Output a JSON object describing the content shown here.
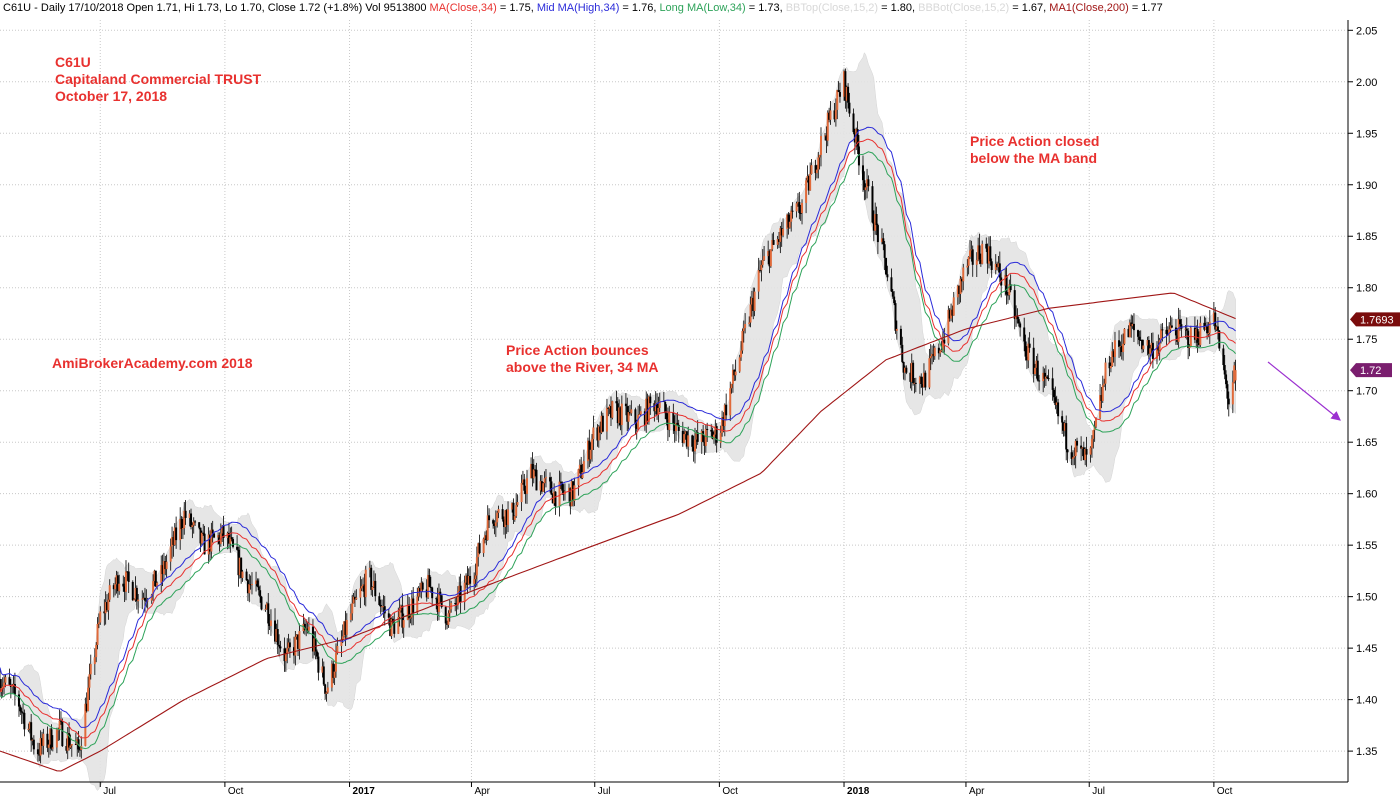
{
  "header": {
    "segments": [
      {
        "text": "C61U - Daily 17/10/2018 Open 1.71, Hi 1.73, Lo 1.70, Close 1.72 (+1.8%) Vol 9513800 ",
        "color": "#000000"
      },
      {
        "text": "MA(Close,34)",
        "color": "#e8312f"
      },
      {
        "text": " = 1.75, ",
        "color": "#000000"
      },
      {
        "text": "Mid MA(High,34)",
        "color": "#2b2bd9"
      },
      {
        "text": " = 1.76, ",
        "color": "#000000"
      },
      {
        "text": "Long MA(Low,34)",
        "color": "#2ea35a"
      },
      {
        "text": " = 1.73, ",
        "color": "#000000"
      },
      {
        "text": "BBTop(Close,15,2)",
        "color": "#d8d8d8"
      },
      {
        "text": " = 1.80, ",
        "color": "#000000"
      },
      {
        "text": "BBBot(Close,15,2)",
        "color": "#d8d8d8"
      },
      {
        "text": " = 1.67, ",
        "color": "#000000"
      },
      {
        "text": "MA1(Close,200)",
        "color": "#a01616"
      },
      {
        "text": " = 1.77",
        "color": "#000000"
      }
    ]
  },
  "annotations": {
    "symbol": "C61U",
    "company": "Capitaland Commercial TRUST",
    "date": "October 17, 2018",
    "site": "AmiBrokerAcademy.com  2018",
    "note_bounce_1": "Price Action bounces",
    "note_bounce_2": "above the River, 34 MA",
    "note_closed_1": "Price Action closed",
    "note_closed_2": "below the MA band"
  },
  "price_tags": {
    "ma200": {
      "label": "1.7693",
      "value": 1.7693,
      "color": "#7a0c0c"
    },
    "last": {
      "label": "1.72",
      "value": 1.72,
      "color": "#7a1e6e"
    }
  },
  "colors": {
    "text_red": "#e8312f",
    "up_candle": "#e06a3a",
    "down_candle": "#000000",
    "ma34_close": "#e8312f",
    "ma34_high": "#2b2bd9",
    "ma34_low": "#2ea35a",
    "ma200": "#a01616",
    "bb_fill": "#e4e4e4",
    "grid": "#c8c8c8",
    "arrow": "#9b30d0"
  },
  "chart_data": {
    "type": "candlestick",
    "title": "C61U - Daily 17/10/2018",
    "ylim": [
      1.32,
      2.06
    ],
    "yticks": [
      "1.35",
      "1.40",
      "1.45",
      "1.50",
      "1.55",
      "1.60",
      "1.65",
      "1.70",
      "1.75",
      "1.80",
      "1.85",
      "1.90",
      "1.95",
      "2.00",
      "2.05"
    ],
    "xlim": [
      "2016-04-18",
      "2019-01-08"
    ],
    "xticks": [
      {
        "date": "2016-07-01",
        "label": "Jul",
        "bold": false
      },
      {
        "date": "2016-10-01",
        "label": "Oct",
        "bold": false
      },
      {
        "date": "2017-01-01",
        "label": "2017",
        "bold": true
      },
      {
        "date": "2017-04-01",
        "label": "Apr",
        "bold": false
      },
      {
        "date": "2017-07-01",
        "label": "Jul",
        "bold": false
      },
      {
        "date": "2017-10-01",
        "label": "Oct",
        "bold": false
      },
      {
        "date": "2018-01-01",
        "label": "2018",
        "bold": true
      },
      {
        "date": "2018-04-01",
        "label": "Apr",
        "bold": false
      },
      {
        "date": "2018-07-01",
        "label": "Jul",
        "bold": false
      },
      {
        "date": "2018-10-01",
        "label": "Oct",
        "bold": false
      }
    ],
    "price_path": [
      [
        "2016-04-18",
        1.42
      ],
      [
        "2016-05-01",
        1.4
      ],
      [
        "2016-05-15",
        1.35
      ],
      [
        "2016-06-01",
        1.37
      ],
      [
        "2016-06-15",
        1.35
      ],
      [
        "2016-07-01",
        1.48
      ],
      [
        "2016-07-15",
        1.52
      ],
      [
        "2016-08-01",
        1.5
      ],
      [
        "2016-08-15",
        1.52
      ],
      [
        "2016-09-01",
        1.58
      ],
      [
        "2016-09-15",
        1.55
      ],
      [
        "2016-10-01",
        1.56
      ],
      [
        "2016-10-15",
        1.52
      ],
      [
        "2016-11-01",
        1.49
      ],
      [
        "2016-11-15",
        1.44
      ],
      [
        "2016-12-01",
        1.47
      ],
      [
        "2016-12-15",
        1.41
      ],
      [
        "2017-01-01",
        1.48
      ],
      [
        "2017-01-15",
        1.52
      ],
      [
        "2017-02-01",
        1.47
      ],
      [
        "2017-02-15",
        1.49
      ],
      [
        "2017-03-01",
        1.51
      ],
      [
        "2017-03-15",
        1.48
      ],
      [
        "2017-04-01",
        1.52
      ],
      [
        "2017-04-15",
        1.58
      ],
      [
        "2017-05-01",
        1.58
      ],
      [
        "2017-05-15",
        1.62
      ],
      [
        "2017-06-01",
        1.6
      ],
      [
        "2017-06-15",
        1.6
      ],
      [
        "2017-07-01",
        1.66
      ],
      [
        "2017-07-15",
        1.68
      ],
      [
        "2017-08-01",
        1.67
      ],
      [
        "2017-08-15",
        1.69
      ],
      [
        "2017-09-01",
        1.66
      ],
      [
        "2017-09-15",
        1.65
      ],
      [
        "2017-10-01",
        1.66
      ],
      [
        "2017-10-15",
        1.73
      ],
      [
        "2017-11-01",
        1.82
      ],
      [
        "2017-11-15",
        1.85
      ],
      [
        "2017-12-01",
        1.88
      ],
      [
        "2017-12-15",
        1.94
      ],
      [
        "2018-01-01",
        2.0
      ],
      [
        "2018-01-15",
        1.91
      ],
      [
        "2018-02-01",
        1.82
      ],
      [
        "2018-02-15",
        1.72
      ],
      [
        "2018-03-01",
        1.71
      ],
      [
        "2018-03-15",
        1.75
      ],
      [
        "2018-04-01",
        1.82
      ],
      [
        "2018-04-15",
        1.84
      ],
      [
        "2018-05-01",
        1.8
      ],
      [
        "2018-05-15",
        1.74
      ],
      [
        "2018-06-01",
        1.7
      ],
      [
        "2018-06-15",
        1.65
      ],
      [
        "2018-07-01",
        1.63
      ],
      [
        "2018-07-15",
        1.73
      ],
      [
        "2018-08-01",
        1.76
      ],
      [
        "2018-08-15",
        1.74
      ],
      [
        "2018-09-01",
        1.76
      ],
      [
        "2018-09-15",
        1.75
      ],
      [
        "2018-10-01",
        1.77
      ],
      [
        "2018-10-08",
        1.72
      ],
      [
        "2018-10-12",
        1.69
      ],
      [
        "2018-10-17",
        1.72
      ]
    ],
    "ma200_path": [
      [
        "2016-04-18",
        1.35
      ],
      [
        "2016-06-01",
        1.33
      ],
      [
        "2016-07-01",
        1.35
      ],
      [
        "2016-09-01",
        1.4
      ],
      [
        "2016-11-01",
        1.44
      ],
      [
        "2017-01-01",
        1.46
      ],
      [
        "2017-03-01",
        1.49
      ],
      [
        "2017-05-01",
        1.52
      ],
      [
        "2017-07-01",
        1.55
      ],
      [
        "2017-09-01",
        1.58
      ],
      [
        "2017-11-01",
        1.62
      ],
      [
        "2017-12-15",
        1.68
      ],
      [
        "2018-02-01",
        1.73
      ],
      [
        "2018-04-01",
        1.76
      ],
      [
        "2018-06-01",
        1.78
      ],
      [
        "2018-08-01",
        1.79
      ],
      [
        "2018-09-01",
        1.795
      ],
      [
        "2018-10-17",
        1.77
      ]
    ],
    "last": {
      "date": "2018-10-17",
      "open": 1.71,
      "high": 1.73,
      "low": 1.7,
      "close": 1.72,
      "volume": 9513800
    }
  }
}
